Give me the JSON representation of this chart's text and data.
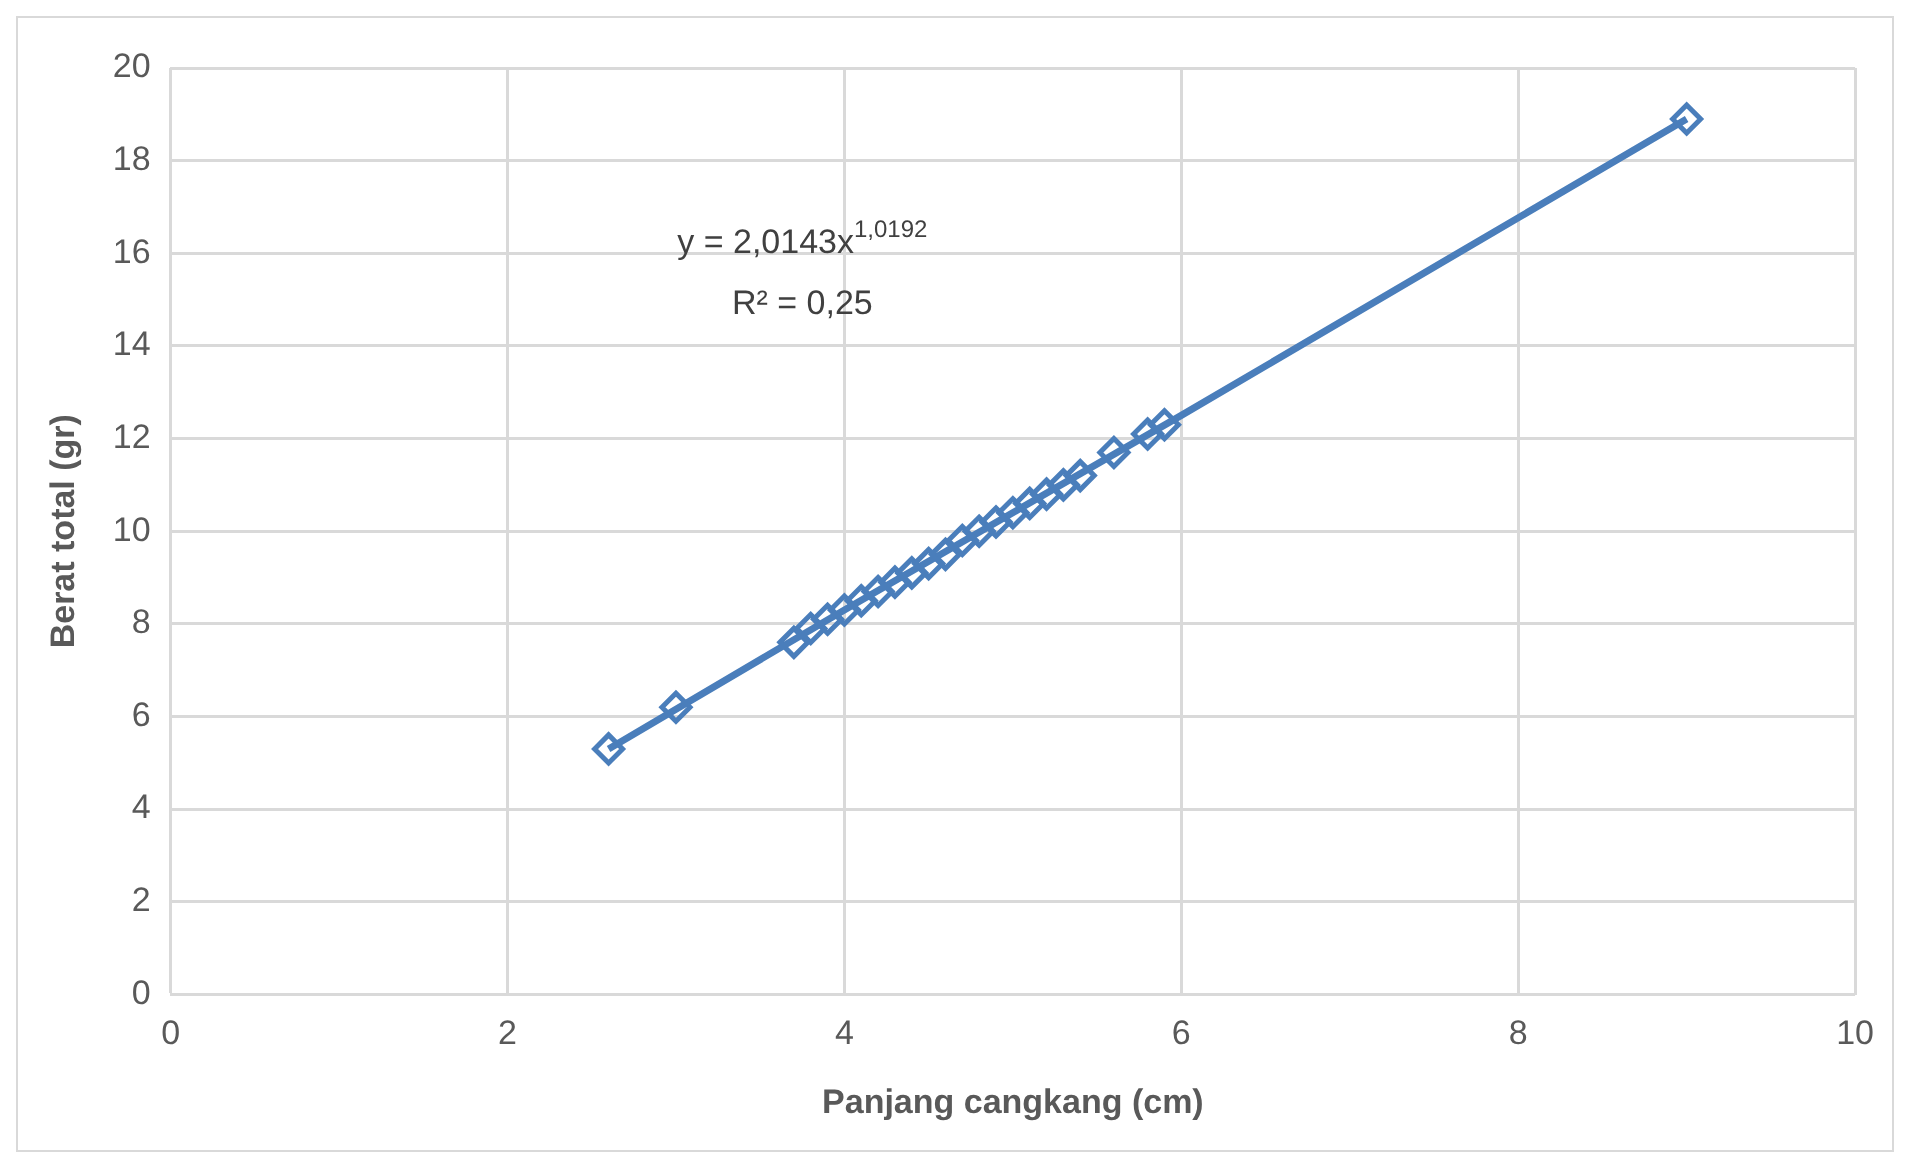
{
  "chart_data": {
    "type": "scatter",
    "xlabel": "Panjang cangkang (cm)",
    "ylabel": "Berat total (gr)",
    "annotations": [
      "y = 2,0143x$^{1,0192}$",
      "R² = 0,25"
    ],
    "xlim": [
      0,
      10
    ],
    "xticks": [
      0,
      2,
      4,
      6,
      8,
      10
    ],
    "ylim": [
      0,
      20
    ],
    "yticks": [
      0,
      2,
      4,
      6,
      8,
      10,
      12,
      14,
      16,
      18,
      20
    ],
    "grid": true,
    "legend": false,
    "marker": "diamond",
    "series": [
      {
        "color": "#4a7ebb",
        "x": [
          2.6,
          3.0,
          3.7,
          3.8,
          3.9,
          4.0,
          4.1,
          4.2,
          4.3,
          4.4,
          4.5,
          4.6,
          4.7,
          4.8,
          4.9,
          5.0,
          5.1,
          5.2,
          5.3,
          5.4,
          5.6,
          5.8,
          5.9,
          9.0
        ],
        "values": [
          5.3,
          6.2,
          7.6,
          7.9,
          8.1,
          8.3,
          8.5,
          8.7,
          8.9,
          9.1,
          9.3,
          9.5,
          9.8,
          10.0,
          10.2,
          10.4,
          10.6,
          10.8,
          11.0,
          11.2,
          11.7,
          12.1,
          12.3,
          18.9
        ]
      },
      {
        "type": "line",
        "color": "#4a7ebb",
        "marker": "none",
        "line_style": "solid",
        "x": [
          2.6,
          4.0,
          6.0,
          9.0
        ],
        "values": [
          5.3,
          8.3,
          12.5,
          18.9
        ]
      }
    ]
  }
}
